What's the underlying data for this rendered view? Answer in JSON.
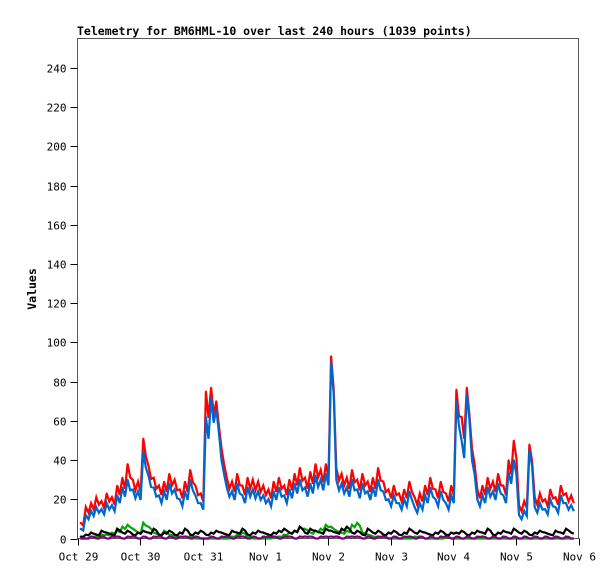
{
  "chart_data": {
    "type": "line",
    "title": "Telemetry for BM6HML-10 over last 240 hours (1039 points)",
    "xlabel": "",
    "ylabel": "Values",
    "ylim": [
      0,
      255
    ],
    "xlim_days": [
      0,
      8
    ],
    "x_tick_labels": [
      "Oct 29",
      "Oct 30",
      "Oct 31",
      "Nov 1",
      "Nov 2",
      "Nov 3",
      "Nov 4",
      "Nov 5",
      "Nov 6"
    ],
    "y_ticks": [
      0,
      20,
      40,
      60,
      80,
      100,
      120,
      140,
      160,
      180,
      200,
      220,
      240
    ],
    "grid": false,
    "legend": "none",
    "x_start_day": 0.05,
    "x_step_hours": 2,
    "series": [
      {
        "name": "red",
        "color": "#ff0000",
        "values": [
          8,
          16,
          18,
          21,
          19,
          23,
          21,
          27,
          31,
          38,
          30,
          29,
          51,
          37,
          31,
          27,
          29,
          33,
          30,
          25,
          29,
          35,
          27,
          23,
          75,
          77,
          70,
          46,
          31,
          29,
          33,
          27,
          31,
          30,
          29,
          27,
          25,
          29,
          31,
          27,
          30,
          33,
          36,
          31,
          34,
          38,
          35,
          38,
          93,
          36,
          33,
          31,
          35,
          30,
          33,
          29,
          31,
          36,
          29,
          25,
          27,
          23,
          25,
          29,
          21,
          23,
          27,
          31,
          25,
          29,
          23,
          27,
          76,
          62,
          77,
          46,
          25,
          27,
          31,
          29,
          33,
          27,
          40,
          50,
          17,
          19,
          48,
          21,
          23,
          20,
          25,
          21,
          27,
          23,
          22
        ]
      },
      {
        "name": "blue",
        "color": "#0066cc",
        "values": [
          5,
          12,
          14,
          16,
          15,
          18,
          17,
          22,
          26,
          30,
          25,
          24,
          44,
          32,
          26,
          22,
          24,
          28,
          25,
          20,
          24,
          30,
          22,
          18,
          62,
          72,
          66,
          40,
          26,
          24,
          28,
          22,
          26,
          25,
          24,
          22,
          20,
          24,
          26,
          22,
          25,
          28,
          30,
          26,
          28,
          32,
          30,
          33,
          90,
          30,
          28,
          26,
          30,
          25,
          28,
          24,
          26,
          30,
          24,
          20,
          22,
          18,
          20,
          24,
          16,
          18,
          22,
          26,
          20,
          24,
          18,
          22,
          70,
          50,
          74,
          40,
          20,
          22,
          26,
          24,
          28,
          22,
          34,
          40,
          12,
          14,
          45,
          16,
          18,
          15,
          20,
          16,
          22,
          18,
          17
        ]
      },
      {
        "name": "green",
        "color": "#00aa00",
        "values": [
          0,
          0,
          1,
          1,
          2,
          2,
          3,
          4,
          6,
          7,
          5,
          3,
          8,
          6,
          3,
          2,
          4,
          2,
          1,
          1,
          1,
          1,
          0,
          0,
          0,
          0,
          0,
          0,
          0,
          1,
          2,
          3,
          1,
          0,
          0,
          0,
          0,
          1,
          1,
          2,
          3,
          4,
          6,
          5,
          3,
          4,
          5,
          7,
          6,
          4,
          3,
          4,
          7,
          8,
          3,
          2,
          1,
          1,
          1,
          0,
          0,
          0,
          0,
          0,
          1,
          1,
          0,
          0,
          0,
          0,
          1,
          0,
          0,
          0,
          0,
          0,
          0,
          0,
          0,
          0,
          0,
          0,
          0,
          0,
          0,
          0,
          0,
          0,
          0,
          0,
          0,
          0,
          0,
          0,
          0
        ]
      },
      {
        "name": "black",
        "color": "#000000",
        "values": [
          1,
          2,
          3,
          2,
          4,
          3,
          2,
          5,
          3,
          4,
          2,
          3,
          4,
          3,
          5,
          2,
          3,
          4,
          2,
          3,
          5,
          2,
          3,
          4,
          2,
          3,
          4,
          3,
          2,
          4,
          3,
          5,
          2,
          3,
          4,
          3,
          2,
          3,
          4,
          5,
          3,
          4,
          6,
          3,
          5,
          4,
          3,
          5,
          4,
          3,
          5,
          6,
          3,
          4,
          2,
          5,
          3,
          4,
          2,
          3,
          4,
          2,
          3,
          5,
          3,
          4,
          3,
          2,
          3,
          4,
          2,
          3,
          3,
          4,
          2,
          3,
          4,
          3,
          5,
          2,
          3,
          4,
          3,
          5,
          3,
          4,
          2,
          3,
          4,
          3,
          2,
          4,
          3,
          5,
          3
        ]
      },
      {
        "name": "purple",
        "color": "#800080",
        "values": [
          0,
          0,
          1,
          0,
          1,
          0,
          1,
          1,
          0,
          1,
          1,
          0,
          1,
          0,
          1,
          1,
          0,
          1,
          0,
          1,
          1,
          0,
          1,
          0,
          0,
          1,
          0,
          1,
          1,
          0,
          1,
          1,
          0,
          1,
          0,
          1,
          1,
          1,
          0,
          1,
          1,
          0,
          1,
          1,
          1,
          0,
          1,
          1,
          1,
          1,
          0,
          1,
          1,
          1,
          0,
          1,
          0,
          1,
          1,
          0,
          1,
          0,
          1,
          1,
          0,
          1,
          0,
          1,
          0,
          1,
          1,
          0,
          1,
          0,
          1,
          0,
          1,
          1,
          0,
          1,
          0,
          1,
          0,
          1,
          0,
          1,
          0,
          1,
          0,
          1,
          0,
          1,
          0,
          1,
          0
        ]
      }
    ]
  }
}
